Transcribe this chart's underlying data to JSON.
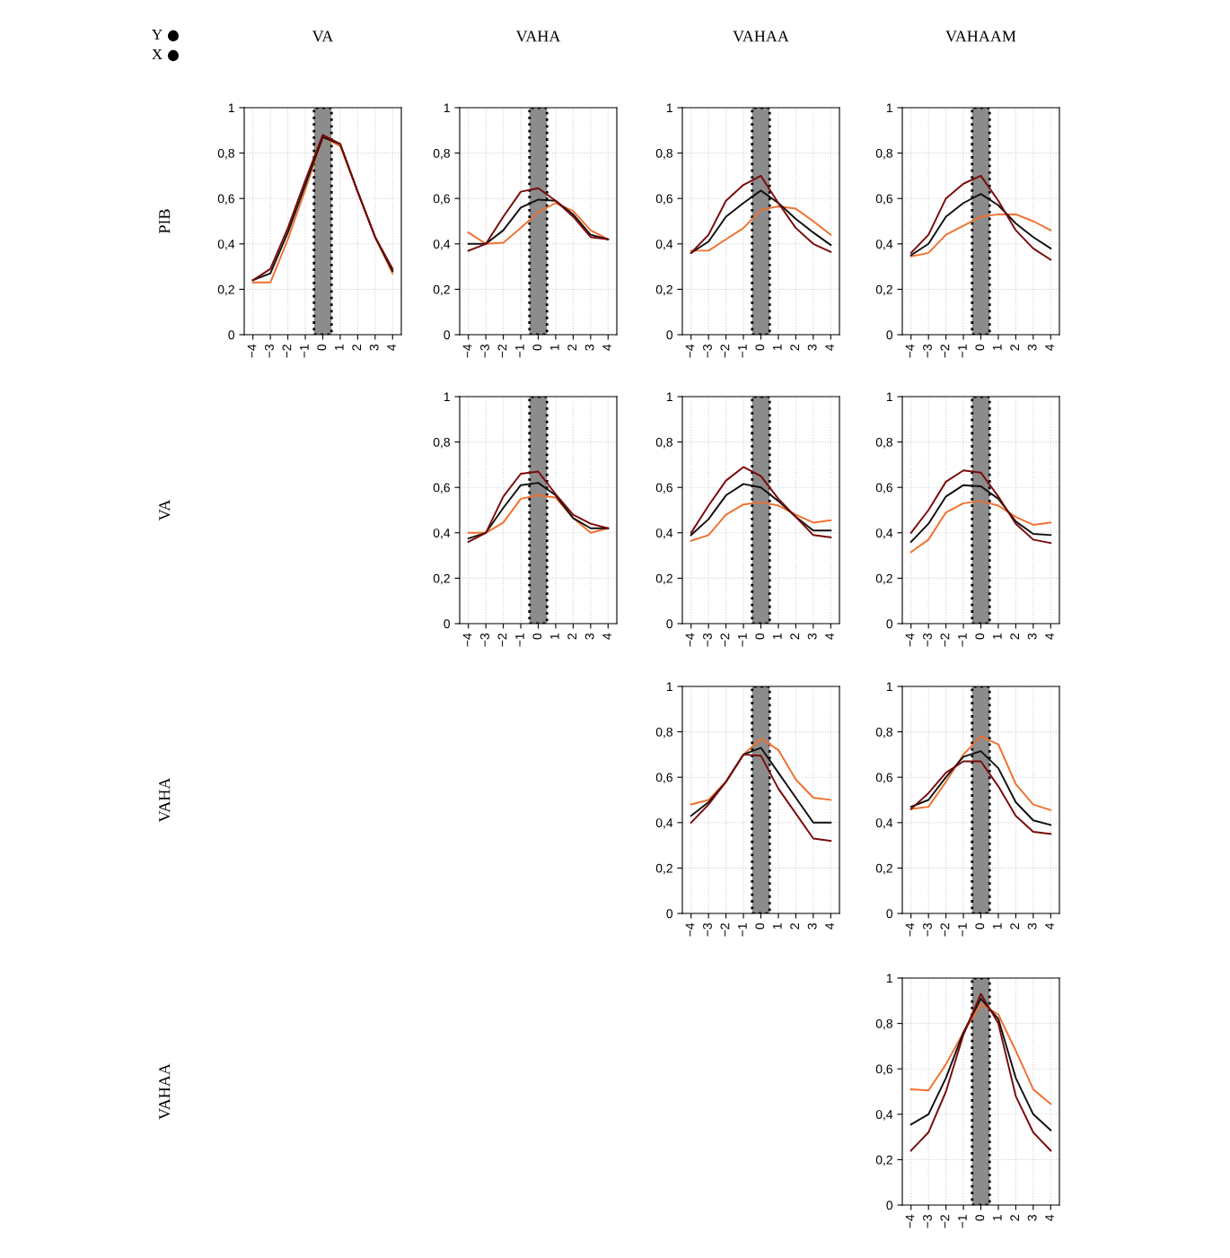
{
  "chart_data": [
    {
      "type": "line",
      "title": "VA",
      "ylabel": "PIB",
      "annotations": [
        "Y",
        "X"
      ],
      "x": [
        -4,
        -3,
        -2,
        -1,
        0,
        1,
        2,
        3,
        4
      ],
      "xlim": [
        -4.5,
        4.5
      ],
      "xticks": [
        {
          "value": -4,
          "label": "−4"
        },
        {
          "value": -3,
          "label": "−3"
        },
        {
          "value": -2,
          "label": "−2"
        },
        {
          "value": -1,
          "label": "−1"
        },
        0,
        1,
        2,
        3,
        4
      ],
      "ylim": [
        0,
        1
      ],
      "yticks": [
        0,
        {
          "value": 0.2,
          "label": "0,2"
        },
        {
          "value": 0.4,
          "label": "0,4"
        },
        {
          "value": 0.6,
          "label": "0,6"
        },
        {
          "value": 0.8,
          "label": "0,8"
        },
        1
      ],
      "grid": true,
      "bands": [
        {
          "axis": "x",
          "from": -0.5,
          "to": 0.5,
          "color": "#8c8c8c"
        }
      ],
      "series": [
        {
          "color": "#f07030",
          "values": [
            0.23,
            0.23,
            0.42,
            0.64,
            0.87,
            0.83,
            0.63,
            0.43,
            0.27
          ]
        },
        {
          "color": "#111111",
          "values": [
            0.24,
            0.27,
            0.45,
            0.66,
            0.87,
            0.84,
            0.63,
            0.43,
            0.28
          ]
        },
        {
          "color": "#7a0a0a",
          "values": [
            0.24,
            0.29,
            0.47,
            0.68,
            0.88,
            0.84,
            0.63,
            0.43,
            0.29
          ]
        }
      ]
    },
    {
      "type": "line",
      "title": "VAHA",
      "x": [
        -4,
        -3,
        -2,
        -1,
        0,
        1,
        2,
        3,
        4
      ],
      "xlim": [
        -4.5,
        4.5
      ],
      "xticks": [
        {
          "value": -4,
          "label": "−4"
        },
        {
          "value": -3,
          "label": "−3"
        },
        {
          "value": -2,
          "label": "−2"
        },
        {
          "value": -1,
          "label": "−1"
        },
        0,
        1,
        2,
        3,
        4
      ],
      "ylim": [
        0,
        1
      ],
      "yticks": [
        0,
        {
          "value": 0.2,
          "label": "0,2"
        },
        {
          "value": 0.4,
          "label": "0,4"
        },
        {
          "value": 0.6,
          "label": "0,6"
        },
        {
          "value": 0.8,
          "label": "0,8"
        },
        1
      ],
      "grid": true,
      "bands": [
        {
          "axis": "x",
          "from": -0.5,
          "to": 0.5,
          "color": "#8c8c8c"
        }
      ],
      "series": [
        {
          "color": "#f07030",
          "values": [
            0.45,
            0.4,
            0.405,
            0.47,
            0.54,
            0.58,
            0.545,
            0.46,
            0.42
          ]
        },
        {
          "color": "#111111",
          "values": [
            0.4,
            0.4,
            0.46,
            0.56,
            0.595,
            0.59,
            0.53,
            0.44,
            0.42
          ]
        },
        {
          "color": "#7a0a0a",
          "values": [
            0.37,
            0.4,
            0.52,
            0.63,
            0.645,
            0.59,
            0.52,
            0.43,
            0.42
          ]
        }
      ]
    },
    {
      "type": "line",
      "title": "VAHAA",
      "x": [
        -4,
        -3,
        -2,
        -1,
        0,
        1,
        2,
        3,
        4
      ],
      "xlim": [
        -4.5,
        4.5
      ],
      "xticks": [
        {
          "value": -4,
          "label": "−4"
        },
        {
          "value": -3,
          "label": "−3"
        },
        {
          "value": -2,
          "label": "−2"
        },
        {
          "value": -1,
          "label": "−1"
        },
        0,
        1,
        2,
        3,
        4
      ],
      "ylim": [
        0,
        1
      ],
      "yticks": [
        0,
        {
          "value": 0.2,
          "label": "0,2"
        },
        {
          "value": 0.4,
          "label": "0,4"
        },
        {
          "value": 0.6,
          "label": "0,6"
        },
        {
          "value": 0.8,
          "label": "0,8"
        },
        1
      ],
      "grid": true,
      "bands": [
        {
          "axis": "x",
          "from": -0.5,
          "to": 0.5,
          "color": "#8c8c8c"
        }
      ],
      "series": [
        {
          "color": "#f07030",
          "values": [
            0.37,
            0.37,
            0.42,
            0.47,
            0.55,
            0.565,
            0.555,
            0.5,
            0.44
          ]
        },
        {
          "color": "#111111",
          "values": [
            0.36,
            0.41,
            0.52,
            0.58,
            0.635,
            0.58,
            0.51,
            0.45,
            0.395
          ]
        },
        {
          "color": "#7a0a0a",
          "values": [
            0.36,
            0.44,
            0.59,
            0.66,
            0.7,
            0.58,
            0.47,
            0.4,
            0.365
          ]
        }
      ]
    },
    {
      "type": "line",
      "title": "VAHAAM",
      "x": [
        -4,
        -3,
        -2,
        -1,
        0,
        1,
        2,
        3,
        4
      ],
      "xlim": [
        -4.5,
        4.5
      ],
      "xticks": [
        {
          "value": -4,
          "label": "−4"
        },
        {
          "value": -3,
          "label": "−3"
        },
        {
          "value": -2,
          "label": "−2"
        },
        {
          "value": -1,
          "label": "−1"
        },
        0,
        1,
        2,
        3,
        4
      ],
      "ylim": [
        0,
        1
      ],
      "yticks": [
        0,
        {
          "value": 0.2,
          "label": "0,2"
        },
        {
          "value": 0.4,
          "label": "0,4"
        },
        {
          "value": 0.6,
          "label": "0,6"
        },
        {
          "value": 0.8,
          "label": "0,8"
        },
        1
      ],
      "grid": true,
      "bands": [
        {
          "axis": "x",
          "from": -0.5,
          "to": 0.5,
          "color": "#8c8c8c"
        }
      ],
      "series": [
        {
          "color": "#f07030",
          "values": [
            0.345,
            0.36,
            0.44,
            0.48,
            0.52,
            0.53,
            0.53,
            0.5,
            0.46
          ]
        },
        {
          "color": "#111111",
          "values": [
            0.35,
            0.4,
            0.52,
            0.58,
            0.62,
            0.57,
            0.49,
            0.43,
            0.38
          ]
        },
        {
          "color": "#7a0a0a",
          "values": [
            0.36,
            0.44,
            0.6,
            0.665,
            0.7,
            0.59,
            0.46,
            0.38,
            0.33
          ]
        }
      ]
    },
    {
      "type": "line",
      "ylabel": "VA",
      "x": [
        -4,
        -3,
        -2,
        -1,
        0,
        1,
        2,
        3,
        4
      ],
      "xlim": [
        -4.5,
        4.5
      ],
      "xticks": [
        {
          "value": -4,
          "label": "−4"
        },
        {
          "value": -3,
          "label": "−3"
        },
        {
          "value": -2,
          "label": "−2"
        },
        {
          "value": -1,
          "label": "−1"
        },
        0,
        1,
        2,
        3,
        4
      ],
      "ylim": [
        0,
        1
      ],
      "yticks": [
        0,
        {
          "value": 0.2,
          "label": "0,2"
        },
        {
          "value": 0.4,
          "label": "0,4"
        },
        {
          "value": 0.6,
          "label": "0,6"
        },
        {
          "value": 0.8,
          "label": "0,8"
        },
        1
      ],
      "grid": true,
      "bands": [
        {
          "axis": "x",
          "from": -0.5,
          "to": 0.5,
          "color": "#8c8c8c"
        }
      ],
      "series": [
        {
          "color": "#f07030",
          "values": [
            0.4,
            0.4,
            0.445,
            0.55,
            0.565,
            0.555,
            0.465,
            0.4,
            0.42
          ]
        },
        {
          "color": "#111111",
          "values": [
            0.375,
            0.4,
            0.51,
            0.61,
            0.62,
            0.565,
            0.465,
            0.42,
            0.42
          ]
        },
        {
          "color": "#7a0a0a",
          "values": [
            0.36,
            0.4,
            0.56,
            0.66,
            0.67,
            0.57,
            0.48,
            0.44,
            0.42
          ]
        }
      ]
    },
    {
      "type": "line",
      "x": [
        -4,
        -3,
        -2,
        -1,
        0,
        1,
        2,
        3,
        4
      ],
      "xlim": [
        -4.5,
        4.5
      ],
      "xticks": [
        {
          "value": -4,
          "label": "−4"
        },
        {
          "value": -3,
          "label": "−3"
        },
        {
          "value": -2,
          "label": "−2"
        },
        {
          "value": -1,
          "label": "−1"
        },
        0,
        1,
        2,
        3,
        4
      ],
      "ylim": [
        0,
        1
      ],
      "yticks": [
        0,
        {
          "value": 0.2,
          "label": "0,2"
        },
        {
          "value": 0.4,
          "label": "0,4"
        },
        {
          "value": 0.6,
          "label": "0,6"
        },
        {
          "value": 0.8,
          "label": "0,8"
        },
        1
      ],
      "grid": true,
      "bands": [
        {
          "axis": "x",
          "from": -0.5,
          "to": 0.5,
          "color": "#8c8c8c"
        }
      ],
      "series": [
        {
          "color": "#f07030",
          "values": [
            0.365,
            0.39,
            0.48,
            0.525,
            0.535,
            0.52,
            0.48,
            0.445,
            0.455
          ]
        },
        {
          "color": "#111111",
          "values": [
            0.39,
            0.46,
            0.565,
            0.615,
            0.6,
            0.54,
            0.47,
            0.41,
            0.41
          ]
        },
        {
          "color": "#7a0a0a",
          "values": [
            0.4,
            0.52,
            0.63,
            0.69,
            0.65,
            0.55,
            0.47,
            0.39,
            0.38
          ]
        }
      ]
    },
    {
      "type": "line",
      "x": [
        -4,
        -3,
        -2,
        -1,
        0,
        1,
        2,
        3,
        4
      ],
      "xlim": [
        -4.5,
        4.5
      ],
      "xticks": [
        {
          "value": -4,
          "label": "−4"
        },
        {
          "value": -3,
          "label": "−3"
        },
        {
          "value": -2,
          "label": "−2"
        },
        {
          "value": -1,
          "label": "−1"
        },
        0,
        1,
        2,
        3,
        4
      ],
      "ylim": [
        0,
        1
      ],
      "yticks": [
        0,
        {
          "value": 0.2,
          "label": "0,2"
        },
        {
          "value": 0.4,
          "label": "0,4"
        },
        {
          "value": 0.6,
          "label": "0,6"
        },
        {
          "value": 0.8,
          "label": "0,8"
        },
        1
      ],
      "grid": true,
      "bands": [
        {
          "axis": "x",
          "from": -0.5,
          "to": 0.5,
          "color": "#8c8c8c"
        }
      ],
      "series": [
        {
          "color": "#f07030",
          "values": [
            0.315,
            0.37,
            0.49,
            0.53,
            0.54,
            0.52,
            0.47,
            0.435,
            0.445
          ]
        },
        {
          "color": "#111111",
          "values": [
            0.36,
            0.44,
            0.56,
            0.61,
            0.605,
            0.55,
            0.45,
            0.395,
            0.39
          ]
        },
        {
          "color": "#7a0a0a",
          "values": [
            0.4,
            0.5,
            0.625,
            0.675,
            0.665,
            0.56,
            0.44,
            0.37,
            0.355
          ]
        }
      ]
    },
    {
      "type": "line",
      "ylabel": "VAHA",
      "x": [
        -4,
        -3,
        -2,
        -1,
        0,
        1,
        2,
        3,
        4
      ],
      "xlim": [
        -4.5,
        4.5
      ],
      "xticks": [
        {
          "value": -4,
          "label": "−4"
        },
        {
          "value": -3,
          "label": "−3"
        },
        {
          "value": -2,
          "label": "−2"
        },
        {
          "value": -1,
          "label": "−1"
        },
        0,
        1,
        2,
        3,
        4
      ],
      "ylim": [
        0,
        1
      ],
      "yticks": [
        0,
        {
          "value": 0.2,
          "label": "0,2"
        },
        {
          "value": 0.4,
          "label": "0,4"
        },
        {
          "value": 0.6,
          "label": "0,6"
        },
        {
          "value": 0.8,
          "label": "0,8"
        },
        1
      ],
      "grid": true,
      "bands": [
        {
          "axis": "x",
          "from": -0.5,
          "to": 0.5,
          "color": "#8c8c8c"
        }
      ],
      "series": [
        {
          "color": "#f07030",
          "values": [
            0.48,
            0.5,
            0.58,
            0.7,
            0.77,
            0.72,
            0.59,
            0.51,
            0.5
          ]
        },
        {
          "color": "#111111",
          "values": [
            0.43,
            0.49,
            0.58,
            0.7,
            0.73,
            0.62,
            0.51,
            0.4,
            0.4
          ]
        },
        {
          "color": "#7a0a0a",
          "values": [
            0.4,
            0.48,
            0.58,
            0.7,
            0.695,
            0.55,
            0.44,
            0.33,
            0.32
          ]
        }
      ]
    },
    {
      "type": "line",
      "x": [
        -4,
        -3,
        -2,
        -1,
        0,
        1,
        2,
        3,
        4
      ],
      "xlim": [
        -4.5,
        4.5
      ],
      "xticks": [
        {
          "value": -4,
          "label": "−4"
        },
        {
          "value": -3,
          "label": "−3"
        },
        {
          "value": -2,
          "label": "−2"
        },
        {
          "value": -1,
          "label": "−1"
        },
        0,
        1,
        2,
        3,
        4
      ],
      "ylim": [
        0,
        1
      ],
      "yticks": [
        0,
        {
          "value": 0.2,
          "label": "0,2"
        },
        {
          "value": 0.4,
          "label": "0,4"
        },
        {
          "value": 0.6,
          "label": "0,6"
        },
        {
          "value": 0.8,
          "label": "0,8"
        },
        1
      ],
      "grid": true,
      "bands": [
        {
          "axis": "x",
          "from": -0.5,
          "to": 0.5,
          "color": "#8c8c8c"
        }
      ],
      "series": [
        {
          "color": "#f07030",
          "values": [
            0.46,
            0.47,
            0.58,
            0.7,
            0.78,
            0.745,
            0.57,
            0.48,
            0.455
          ]
        },
        {
          "color": "#111111",
          "values": [
            0.47,
            0.5,
            0.6,
            0.69,
            0.715,
            0.64,
            0.49,
            0.41,
            0.39
          ]
        },
        {
          "color": "#7a0a0a",
          "values": [
            0.46,
            0.53,
            0.62,
            0.67,
            0.67,
            0.56,
            0.43,
            0.36,
            0.35
          ]
        }
      ]
    },
    {
      "type": "line",
      "ylabel": "VAHAA",
      "x": [
        -4,
        -3,
        -2,
        -1,
        0,
        1,
        2,
        3,
        4
      ],
      "xlim": [
        -4.5,
        4.5
      ],
      "xticks": [
        {
          "value": -4,
          "label": "−4"
        },
        {
          "value": -3,
          "label": "−3"
        },
        {
          "value": -2,
          "label": "−2"
        },
        {
          "value": -1,
          "label": "−1"
        },
        0,
        1,
        2,
        3,
        4
      ],
      "ylim": [
        0,
        1
      ],
      "yticks": [
        0,
        {
          "value": 0.2,
          "label": "0,2"
        },
        {
          "value": 0.4,
          "label": "0,4"
        },
        {
          "value": 0.6,
          "label": "0,6"
        },
        {
          "value": 0.8,
          "label": "0,8"
        },
        1
      ],
      "grid": true,
      "bands": [
        {
          "axis": "x",
          "from": -0.5,
          "to": 0.5,
          "color": "#8c8c8c"
        }
      ],
      "series": [
        {
          "color": "#f07030",
          "values": [
            0.51,
            0.505,
            0.62,
            0.76,
            0.885,
            0.84,
            0.68,
            0.51,
            0.445
          ]
        },
        {
          "color": "#111111",
          "values": [
            0.355,
            0.4,
            0.56,
            0.76,
            0.91,
            0.82,
            0.56,
            0.4,
            0.33
          ]
        },
        {
          "color": "#7a0a0a",
          "values": [
            0.24,
            0.32,
            0.5,
            0.75,
            0.93,
            0.8,
            0.48,
            0.32,
            0.24
          ]
        }
      ]
    }
  ]
}
